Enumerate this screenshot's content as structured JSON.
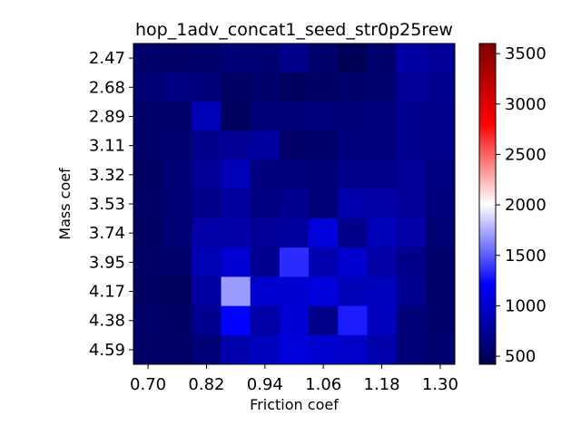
{
  "chart_data": {
    "type": "heatmap",
    "title": "hop_1adv_concat1_seed_str0p25rew",
    "xlabel": "Friction coef",
    "ylabel": "Mass coef",
    "x_ticks": [
      "0.70",
      "0.82",
      "0.94",
      "1.06",
      "1.18",
      "1.30"
    ],
    "y_ticks": [
      "2.47",
      "2.68",
      "2.89",
      "3.11",
      "3.32",
      "3.53",
      "3.74",
      "3.95",
      "4.17",
      "4.38",
      "4.59"
    ],
    "colorbar": {
      "ticks": [
        "500",
        "1000",
        "1500",
        "2000",
        "2500",
        "3000",
        "3500"
      ],
      "tick_values": [
        500,
        1000,
        1500,
        2000,
        2500,
        3000,
        3500
      ],
      "range": [
        420,
        3600
      ],
      "colormap": "seismic"
    },
    "rows": 11,
    "cols": 11,
    "values": [
      [
        560,
        540,
        560,
        610,
        590,
        700,
        560,
        470,
        560,
        800,
        760
      ],
      [
        600,
        660,
        630,
        520,
        560,
        500,
        530,
        560,
        570,
        760,
        720
      ],
      [
        560,
        560,
        900,
        500,
        620,
        620,
        640,
        630,
        640,
        720,
        700
      ],
      [
        560,
        580,
        700,
        750,
        790,
        540,
        560,
        640,
        640,
        720,
        700
      ],
      [
        520,
        600,
        760,
        900,
        640,
        640,
        620,
        700,
        700,
        760,
        660
      ],
      [
        540,
        600,
        700,
        780,
        660,
        720,
        620,
        850,
        820,
        760,
        640
      ],
      [
        520,
        600,
        820,
        820,
        760,
        780,
        1050,
        700,
        900,
        820,
        600
      ],
      [
        540,
        560,
        880,
        1020,
        720,
        1350,
        850,
        1000,
        820,
        700,
        560
      ],
      [
        520,
        500,
        800,
        1700,
        1000,
        1000,
        1070,
        900,
        920,
        720,
        560
      ],
      [
        560,
        530,
        720,
        1220,
        820,
        1020,
        700,
        1300,
        920,
        620,
        560
      ],
      [
        540,
        540,
        620,
        850,
        920,
        1050,
        1000,
        970,
        840,
        620,
        580
      ]
    ]
  }
}
